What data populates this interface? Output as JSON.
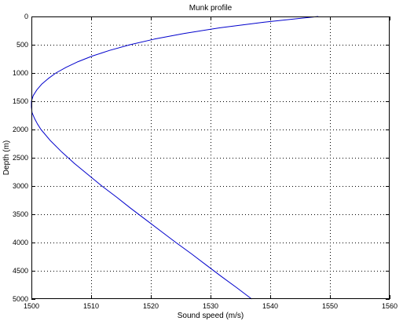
{
  "chart_data": {
    "type": "line",
    "title": "Munk profile",
    "xlabel": "Sound speed (m/s)",
    "ylabel": "Depth (m)",
    "xlim": [
      1500,
      1560
    ],
    "ylim": [
      0,
      5000
    ],
    "y_reversed": true,
    "grid": true,
    "x_ticks": [
      1500,
      1510,
      1520,
      1530,
      1540,
      1550,
      1560
    ],
    "y_ticks": [
      0,
      500,
      1000,
      1500,
      2000,
      2500,
      3000,
      3500,
      4000,
      4500,
      5000
    ],
    "series": [
      {
        "color": "#0000cc",
        "points": [
          [
            1548.05,
            0
          ],
          [
            1539.0,
            100
          ],
          [
            1531.6,
            200
          ],
          [
            1525.6,
            300
          ],
          [
            1520.6,
            400
          ],
          [
            1516.5,
            500
          ],
          [
            1513.1,
            600
          ],
          [
            1510.2,
            700
          ],
          [
            1507.8,
            800
          ],
          [
            1505.8,
            900
          ],
          [
            1504.1,
            1000
          ],
          [
            1502.8,
            1100
          ],
          [
            1501.7,
            1200
          ],
          [
            1500.9,
            1300
          ],
          [
            1500.3,
            1400
          ],
          [
            1500.0,
            1500
          ],
          [
            1500.0,
            1600
          ],
          [
            1500.1,
            1700
          ],
          [
            1500.5,
            1800
          ],
          [
            1501.0,
            1900
          ],
          [
            1501.6,
            2000
          ],
          [
            1503.2,
            2200
          ],
          [
            1505.1,
            2400
          ],
          [
            1507.2,
            2600
          ],
          [
            1509.5,
            2800
          ],
          [
            1511.8,
            3000
          ],
          [
            1514.3,
            3200
          ],
          [
            1516.7,
            3400
          ],
          [
            1519.2,
            3600
          ],
          [
            1521.7,
            3800
          ],
          [
            1524.2,
            4000
          ],
          [
            1526.8,
            4200
          ],
          [
            1529.3,
            4400
          ],
          [
            1531.8,
            4600
          ],
          [
            1534.4,
            4800
          ],
          [
            1536.9,
            5000
          ]
        ]
      }
    ]
  }
}
